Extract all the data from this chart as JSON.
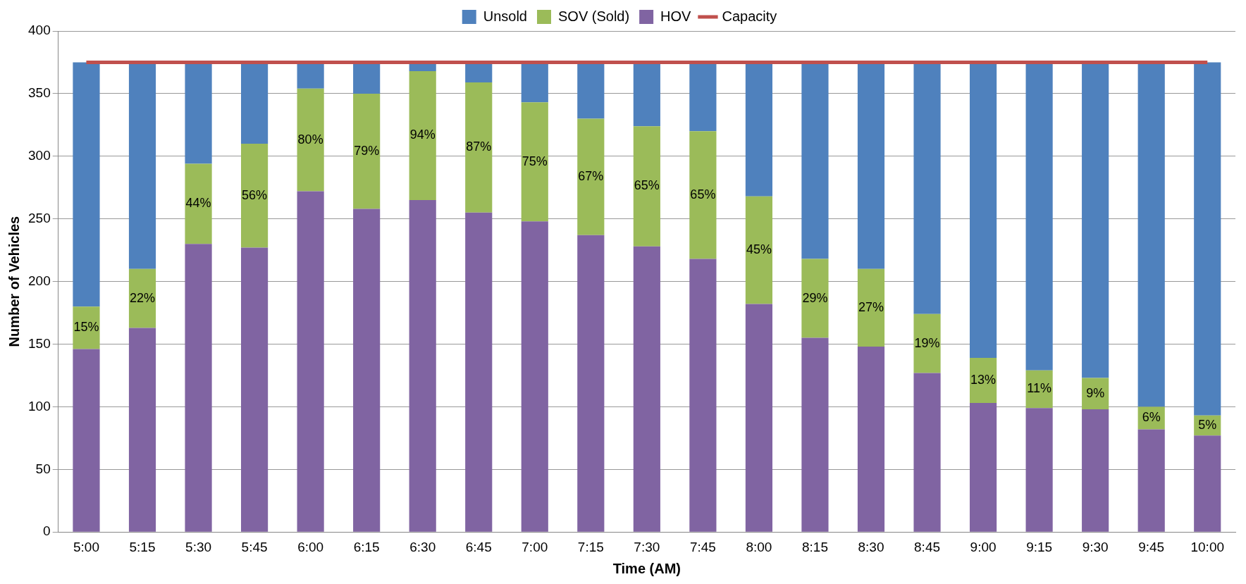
{
  "chart_data": {
    "type": "bar",
    "stacked": true,
    "xlabel": "Time (AM)",
    "ylabel": "Number of Vehicles",
    "categories": [
      "5:00",
      "5:15",
      "5:30",
      "5:45",
      "6:00",
      "6:15",
      "6:30",
      "6:45",
      "7:00",
      "7:15",
      "7:30",
      "7:45",
      "8:00",
      "8:15",
      "8:30",
      "8:45",
      "9:00",
      "9:15",
      "9:30",
      "9:45",
      "10:00"
    ],
    "series": [
      {
        "name": "HOV",
        "color": "#8064a2",
        "values": [
          146,
          163,
          230,
          227,
          272,
          258,
          265,
          255,
          248,
          237,
          228,
          218,
          182,
          155,
          148,
          127,
          103,
          99,
          98,
          82,
          77
        ]
      },
      {
        "name": "SOV (Sold)",
        "color": "#9bbb59",
        "values": [
          34,
          47,
          64,
          83,
          82,
          92,
          103,
          104,
          95,
          93,
          96,
          102,
          86,
          63,
          62,
          47,
          36,
          30,
          25,
          18,
          16
        ]
      },
      {
        "name": "Unsold",
        "color": "#4f81bd",
        "values": [
          195,
          165,
          81,
          65,
          21,
          25,
          7,
          16,
          32,
          45,
          51,
          55,
          107,
          157,
          165,
          201,
          236,
          246,
          252,
          275,
          282
        ]
      },
      {
        "name": "Capacity",
        "type": "line",
        "color": "#c0504d",
        "values": [
          375,
          375,
          375,
          375,
          375,
          375,
          375,
          375,
          375,
          375,
          375,
          375,
          375,
          375,
          375,
          375,
          375,
          375,
          375,
          375,
          375
        ]
      }
    ],
    "ylim": [
      0,
      400
    ],
    "yticks": [
      0,
      50,
      100,
      150,
      200,
      250,
      300,
      350,
      400
    ],
    "grid": "y",
    "legend": "top",
    "marker": "none",
    "annotations": [
      "15%",
      "22%",
      "44%",
      "56%",
      "80%",
      "79%",
      "94%",
      "87%",
      "75%",
      "67%",
      "65%",
      "65%",
      "45%",
      "29%",
      "27%",
      "19%",
      "13%",
      "11%",
      "9%",
      "6%",
      "5%"
    ]
  }
}
